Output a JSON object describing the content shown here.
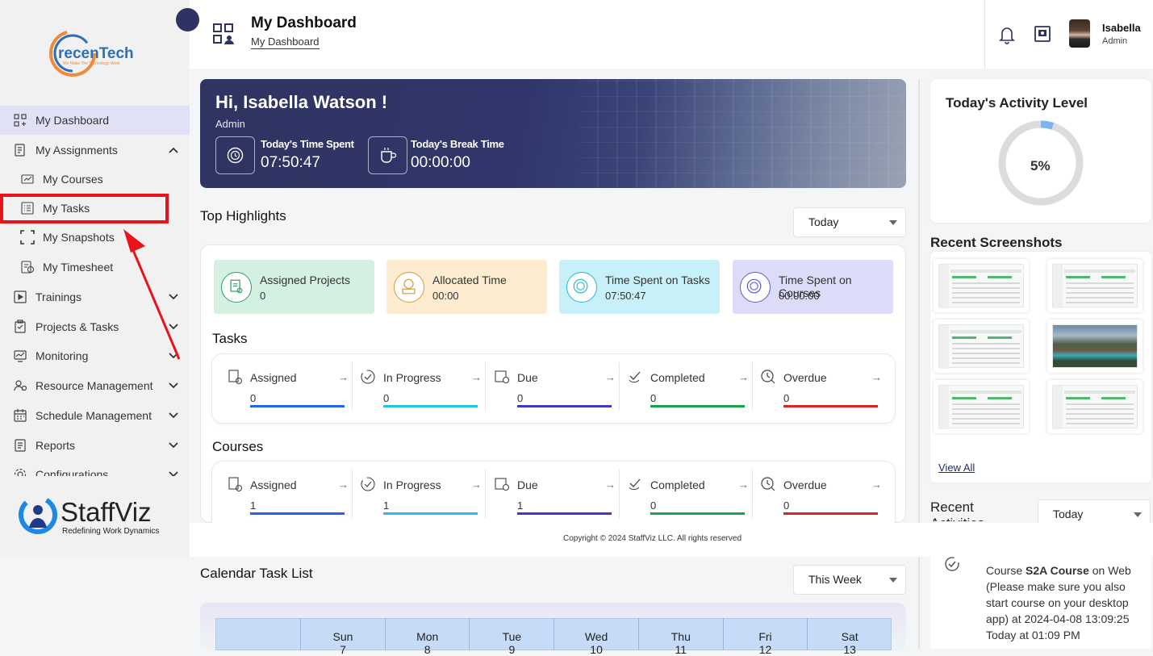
{
  "header": {
    "title": "My Dashboard",
    "breadcrumb": "My Dashboard",
    "user_name": "Isabella",
    "user_role": "Admin"
  },
  "sidebar": {
    "logo_text": "recenTech",
    "logo_tagline": "We Make The Technology Work",
    "items": [
      {
        "label": "My Dashboard",
        "icon": "grid-icon"
      },
      {
        "label": "My Assignments",
        "icon": "assignment-icon"
      },
      {
        "label": "My Courses",
        "icon": "courses-icon"
      },
      {
        "label": "My Tasks",
        "icon": "tasks-icon"
      },
      {
        "label": "My Snapshots",
        "icon": "snapshot-icon"
      },
      {
        "label": "My Timesheet",
        "icon": "timesheet-icon"
      },
      {
        "label": "Trainings",
        "icon": "training-icon"
      },
      {
        "label": "Projects & Tasks",
        "icon": "projects-icon"
      },
      {
        "label": "Monitoring",
        "icon": "monitoring-icon"
      },
      {
        "label": "Resource Management",
        "icon": "resource-icon"
      },
      {
        "label": "Schedule Management",
        "icon": "schedule-icon"
      },
      {
        "label": "Reports",
        "icon": "reports-icon"
      },
      {
        "label": "Configurations",
        "icon": "config-icon"
      }
    ],
    "brand": {
      "name": "StaffViz",
      "tagline": "Redefining Work Dynamics"
    }
  },
  "welcome": {
    "greeting": "Hi, Isabella Watson !",
    "role": "Admin",
    "time_spent_label": "Today's Time Spent",
    "time_spent": "07:50:47",
    "break_label": "Today's Break Time",
    "break_time": "00:00:00"
  },
  "highlights": {
    "title": "Top Highlights",
    "filter": "Today",
    "cards": [
      {
        "label": "Assigned Projects",
        "value": "0",
        "color": "#d4f0e0",
        "icon": "project-icon"
      },
      {
        "label": "Allocated Time",
        "value": "00:00",
        "color": "#fdecd0",
        "icon": "allocated-time-icon"
      },
      {
        "label": "Time Spent on Tasks",
        "value": "07:50:47",
        "color": "#c8f0f8",
        "icon": "task-time-icon"
      },
      {
        "label": "Time Spent on Courses",
        "value": "00:00:00",
        "color": "#dcdcf8",
        "icon": "course-time-icon"
      }
    ]
  },
  "tasks": {
    "title": "Tasks",
    "stats": [
      {
        "label": "Assigned",
        "value": "0",
        "color": "#2563eb"
      },
      {
        "label": "In Progress",
        "value": "0",
        "color": "#22c3e6"
      },
      {
        "label": "Due",
        "value": "0",
        "color": "#4338ca"
      },
      {
        "label": "Completed",
        "value": "0",
        "color": "#16a34a"
      },
      {
        "label": "Overdue",
        "value": "0",
        "color": "#dc2626"
      }
    ]
  },
  "courses": {
    "title": "Courses",
    "stats": [
      {
        "label": "Assigned",
        "value": "1",
        "color": "#2563eb"
      },
      {
        "label": "In Progress",
        "value": "1",
        "color": "#22c3e6"
      },
      {
        "label": "Due",
        "value": "1",
        "color": "#4338ca"
      },
      {
        "label": "Completed",
        "value": "0",
        "color": "#16a34a"
      },
      {
        "label": "Overdue",
        "value": "0",
        "color": "#dc2626"
      }
    ]
  },
  "footer": {
    "copyright": "Copyright © 2024 StaffViz LLC. All rights reserved"
  },
  "calendar": {
    "title": "Calendar Task List",
    "filter": "This Week",
    "days": [
      {
        "name": "Sun",
        "date": "7"
      },
      {
        "name": "Mon",
        "date": "8"
      },
      {
        "name": "Tue",
        "date": "9"
      },
      {
        "name": "Wed",
        "date": "10"
      },
      {
        "name": "Thu",
        "date": "11"
      },
      {
        "name": "Fri",
        "date": "12"
      },
      {
        "name": "Sat",
        "date": "13"
      }
    ]
  },
  "activity": {
    "title": "Today's Activity Level",
    "percent": 5,
    "percent_label": "5%"
  },
  "screenshots": {
    "title": "Recent Screenshots",
    "view_all": "View All",
    "count": 6
  },
  "recent_activities": {
    "title": "Recent Activities",
    "filter": "Today",
    "item": {
      "prefix": "Course ",
      "name": "S2A Course",
      "suffix": " on Web (Please make sure you also start course on your desktop app) at 2024-04-08 13:09:25",
      "time": "Today at 01:09 PM"
    }
  },
  "colors": {
    "accent": "#2d3363",
    "highlight_box": "#e8131b",
    "active_nav": "#e1e1f5"
  }
}
